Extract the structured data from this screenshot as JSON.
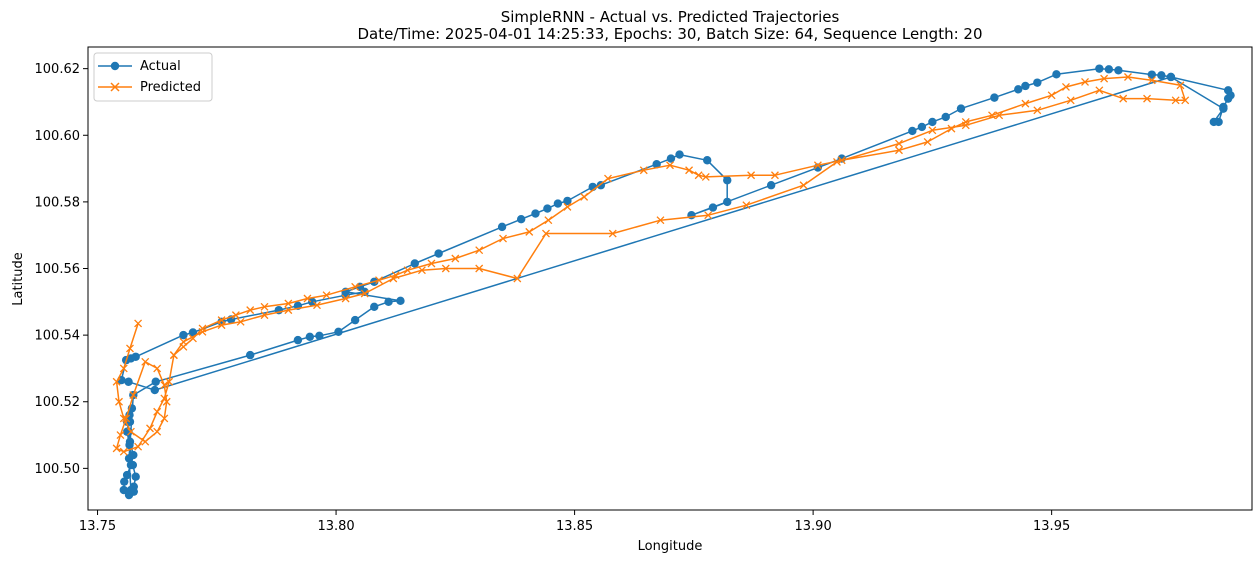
{
  "chart_data": {
    "type": "line",
    "title": "SimpleRNN - Actual vs. Predicted Trajectories",
    "subtitle": "Date/Time: 2025-04-01 14:25:33, Epochs: 30, Batch Size: 64, Sequence Length: 20",
    "xlabel": "Longitude",
    "ylabel": "Latitude",
    "xlim": [
      13.748,
      13.992
    ],
    "ylim": [
      100.4875,
      100.6265
    ],
    "xticks": [
      13.75,
      13.8,
      13.85,
      13.9,
      13.95
    ],
    "xtick_labels": [
      "13.75",
      "13.80",
      "13.85",
      "13.90",
      "13.95"
    ],
    "yticks": [
      100.5,
      100.52,
      100.54,
      100.56,
      100.58,
      100.6,
      100.62
    ],
    "ytick_labels": [
      "100.50",
      "100.52",
      "100.54",
      "100.56",
      "100.58",
      "100.60",
      "100.62"
    ],
    "grid": false,
    "legend_position": "top-left",
    "series": [
      {
        "name": "Actual",
        "color": "#1f77b4",
        "marker": "circle",
        "x": [
          13.7576,
          13.7566,
          13.7555,
          13.7556,
          13.7562,
          13.757,
          13.7575,
          13.7568,
          13.7565,
          13.7562,
          13.7567,
          13.7572,
          13.7568,
          13.7562,
          13.7567,
          13.7574,
          13.758,
          13.7576,
          13.757,
          13.7566,
          13.7575,
          13.7622,
          13.782,
          13.792,
          13.7945,
          13.7965,
          13.8005,
          13.804,
          13.808,
          13.811,
          13.8135,
          13.802,
          13.805,
          13.808,
          13.8165,
          13.8215,
          13.8348,
          13.8388,
          13.8418,
          13.8443,
          13.8465,
          13.8485,
          13.8538,
          13.8555,
          13.8672,
          13.8702,
          13.872,
          13.8778,
          13.882,
          13.882,
          13.879,
          13.8745,
          13.8912,
          13.901,
          13.906,
          13.9208,
          13.9228,
          13.925,
          13.9278,
          13.931,
          13.938,
          13.943,
          13.9445,
          13.947,
          13.951,
          13.96,
          13.962,
          13.964,
          13.971,
          13.973,
          13.975,
          13.987,
          13.9875,
          13.987,
          13.986,
          13.985,
          13.984,
          13.986,
          13.975,
          13.762,
          13.7565,
          13.755,
          13.756,
          13.757,
          13.758,
          13.768,
          13.77,
          13.776,
          13.778,
          13.788,
          13.792,
          13.795,
          13.802,
          13.806
        ],
        "y": [
          100.493,
          100.492,
          100.4935,
          100.496,
          100.498,
          100.501,
          100.504,
          100.508,
          100.511,
          100.514,
          100.516,
          100.518,
          100.514,
          100.511,
          100.507,
          100.501,
          100.4975,
          100.4945,
          100.4935,
          100.503,
          100.522,
          100.526,
          100.534,
          100.5385,
          100.5395,
          100.5398,
          100.541,
          100.5445,
          100.5485,
          100.55,
          100.5503,
          100.553,
          100.5545,
          100.556,
          100.5615,
          100.5645,
          100.5725,
          100.5748,
          100.5765,
          100.578,
          100.5795,
          100.5803,
          100.5845,
          100.585,
          100.5913,
          100.593,
          100.5942,
          100.5925,
          100.5865,
          100.58,
          100.5783,
          100.576,
          100.585,
          100.5903,
          100.593,
          100.6013,
          100.6025,
          100.604,
          100.6055,
          100.608,
          100.6113,
          100.6138,
          100.6148,
          100.6158,
          100.6183,
          100.62,
          100.6198,
          100.6195,
          100.6182,
          100.618,
          100.6175,
          100.6135,
          100.612,
          100.611,
          100.6085,
          100.604,
          100.604,
          100.608,
          100.6175,
          100.5235,
          100.526,
          100.5265,
          100.5325,
          100.533,
          100.5335,
          100.54,
          100.5408,
          100.544,
          100.5447,
          100.5475,
          100.5488,
          100.55,
          100.552,
          100.553
        ]
      },
      {
        "name": "Predicted",
        "color": "#ff7f0e",
        "marker": "x",
        "x": [
          13.7585,
          13.7568,
          13.7555,
          13.754,
          13.7545,
          13.7555,
          13.757,
          13.76,
          13.7625,
          13.764,
          13.7645,
          13.764,
          13.7625,
          13.76,
          13.7575,
          13.756,
          13.7548,
          13.754,
          13.7555,
          13.7585,
          13.761,
          13.7625,
          13.764,
          13.765,
          13.766,
          13.768,
          13.77,
          13.772,
          13.776,
          13.779,
          13.782,
          13.785,
          13.79,
          13.794,
          13.798,
          13.804,
          13.809,
          13.8125,
          13.815,
          13.82,
          13.825,
          13.83,
          13.835,
          13.8405,
          13.8445,
          13.8485,
          13.852,
          13.857,
          13.8645,
          13.87,
          13.874,
          13.876,
          13.8775,
          13.887,
          13.892,
          13.901,
          13.906,
          13.918,
          13.924,
          13.929,
          13.932,
          13.9375,
          13.9445,
          13.95,
          13.953,
          13.957,
          13.961,
          13.966,
          13.971,
          13.977,
          13.978,
          13.976,
          13.97,
          13.965,
          13.96,
          13.954,
          13.947,
          13.939,
          13.932,
          13.925,
          13.918,
          13.905,
          13.898,
          13.886,
          13.878,
          13.868,
          13.858,
          13.844,
          13.838,
          13.83,
          13.823,
          13.818,
          13.812,
          13.806,
          13.802,
          13.796,
          13.79,
          13.785,
          13.78,
          13.776,
          13.772,
          13.768,
          13.766
        ],
        "y": [
          100.5435,
          100.536,
          100.53,
          100.526,
          100.52,
          100.515,
          100.511,
          100.508,
          100.511,
          100.515,
          100.52,
          100.525,
          100.53,
          100.532,
          100.522,
          100.515,
          100.51,
          100.506,
          100.505,
          100.5065,
          100.512,
          100.517,
          100.521,
          100.526,
          100.534,
          100.5365,
          100.539,
          100.542,
          100.5445,
          100.546,
          100.5475,
          100.5485,
          100.5495,
          100.551,
          100.552,
          100.5545,
          100.5565,
          100.558,
          100.5595,
          100.5615,
          100.563,
          100.5655,
          100.569,
          100.571,
          100.5745,
          100.5785,
          100.5815,
          100.587,
          100.5895,
          100.591,
          100.5895,
          100.588,
          100.5875,
          100.588,
          100.588,
          100.591,
          100.5925,
          100.5955,
          100.598,
          100.602,
          100.604,
          100.606,
          100.6095,
          100.612,
          100.6145,
          100.616,
          100.617,
          100.6175,
          100.6165,
          100.615,
          100.6105,
          100.6105,
          100.611,
          100.611,
          100.6135,
          100.6105,
          100.6075,
          100.606,
          100.603,
          100.6015,
          100.5975,
          100.592,
          100.585,
          100.579,
          100.576,
          100.5745,
          100.5705,
          100.5705,
          100.557,
          100.56,
          100.56,
          100.5595,
          100.557,
          100.5525,
          100.551,
          100.549,
          100.5475,
          100.546,
          100.544,
          100.543,
          100.541,
          100.538,
          100.534
        ]
      }
    ]
  }
}
